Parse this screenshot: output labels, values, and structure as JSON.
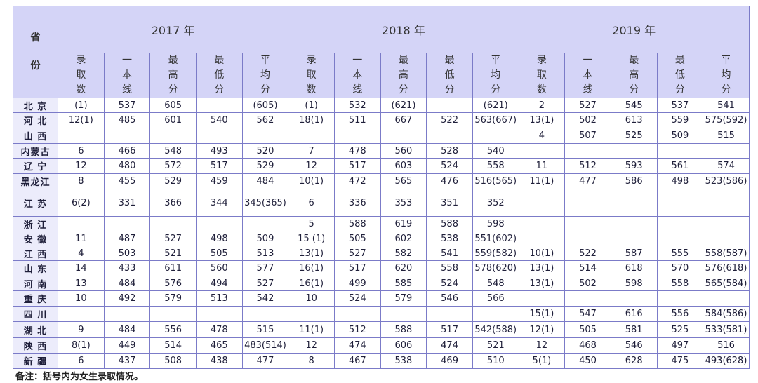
{
  "table": {
    "corner": "省份",
    "years": [
      "2017 年",
      "2018 年",
      "2019 年"
    ],
    "subheaders": [
      "录取数",
      "一本线",
      "最高分",
      "最低分",
      "平均分"
    ],
    "rows": [
      [
        "北 京",
        "(1)",
        "537",
        "605",
        null,
        "(605)",
        "(1)",
        "532",
        "(621)",
        null,
        "(621)",
        "2",
        "527",
        "545",
        "537",
        "541"
      ],
      [
        "河 北",
        "12(1)",
        "485",
        "601",
        "540",
        "562",
        "18(1)",
        "511",
        "667",
        "522",
        "563(667)",
        "13(1)",
        "502",
        "613",
        "559",
        "575(592)"
      ],
      [
        "山 西",
        null,
        null,
        null,
        null,
        null,
        null,
        null,
        null,
        null,
        null,
        "4",
        "507",
        "525",
        "509",
        "515"
      ],
      [
        "内蒙古",
        "6",
        "466",
        "548",
        "493",
        "520",
        "7",
        "478",
        "560",
        "528",
        "540",
        null,
        null,
        null,
        null,
        null
      ],
      [
        "辽 宁",
        "12",
        "480",
        "572",
        "517",
        "529",
        "12",
        "517",
        "603",
        "524",
        "558",
        "11",
        "512",
        "593",
        "561",
        "574"
      ],
      [
        "黑龙江",
        "8",
        "455",
        "529",
        "459",
        "484",
        "10(1)",
        "472",
        "565",
        "476",
        "516(565)",
        "11(1)",
        "477",
        "586",
        "498",
        "523(586)"
      ],
      [
        "江 苏",
        "6(2)",
        "331",
        "366",
        "344",
        "345(365)",
        "6",
        "336",
        "353",
        "351",
        "352",
        null,
        null,
        null,
        null,
        null
      ],
      [
        "浙 江",
        null,
        null,
        null,
        null,
        null,
        "5",
        "588",
        "619",
        "588",
        "598",
        null,
        null,
        null,
        null,
        null
      ],
      [
        "安 徽",
        "11",
        "487",
        "527",
        "498",
        "509",
        "15 (1)",
        "505",
        "602",
        "538",
        "551(602)",
        null,
        null,
        null,
        null,
        null
      ],
      [
        "江 西",
        "4",
        "503",
        "521",
        "505",
        "513",
        "13(1)",
        "527",
        "582",
        "541",
        "559(582)",
        "10(1)",
        "522",
        "587",
        "555",
        "558(587)"
      ],
      [
        "山 东",
        "14",
        "433",
        "611",
        "560",
        "577",
        "16(1)",
        "517",
        "620",
        "558",
        "578(620)",
        "13(1)",
        "514",
        "618",
        "570",
        "576(618)"
      ],
      [
        "河 南",
        "13",
        "484",
        "576",
        "494",
        "527",
        "16(1)",
        "499",
        "585",
        "524",
        "548",
        "13(1)",
        "502",
        "598",
        "558",
        "565(584)"
      ],
      [
        "重 庆",
        "10",
        "492",
        "579",
        "513",
        "542",
        "10",
        "524",
        "579",
        "546",
        "566",
        null,
        null,
        null,
        null,
        null
      ],
      [
        "四 川",
        null,
        null,
        null,
        null,
        null,
        null,
        null,
        null,
        null,
        null,
        "15(1)",
        "547",
        "616",
        "556",
        "584(586)"
      ],
      [
        "湖 北",
        "9",
        "484",
        "556",
        "478",
        "515",
        "11(1)",
        "512",
        "588",
        "517",
        "542(588)",
        "12(1)",
        "505",
        "581",
        "525",
        "533(581)"
      ],
      [
        "陕 西",
        "8(1)",
        "449",
        "514",
        "465",
        "483(514)",
        "12",
        "474",
        "606",
        "474",
        "521",
        "12",
        "468",
        "546",
        "497",
        "516"
      ],
      [
        "新 疆",
        "6",
        "437",
        "508",
        "438",
        "477",
        "8",
        "467",
        "538",
        "469",
        "510",
        "5(1)",
        "450",
        "628",
        "475",
        "493(628)"
      ]
    ],
    "note": "备注：括号内为女生录取情况。"
  }
}
